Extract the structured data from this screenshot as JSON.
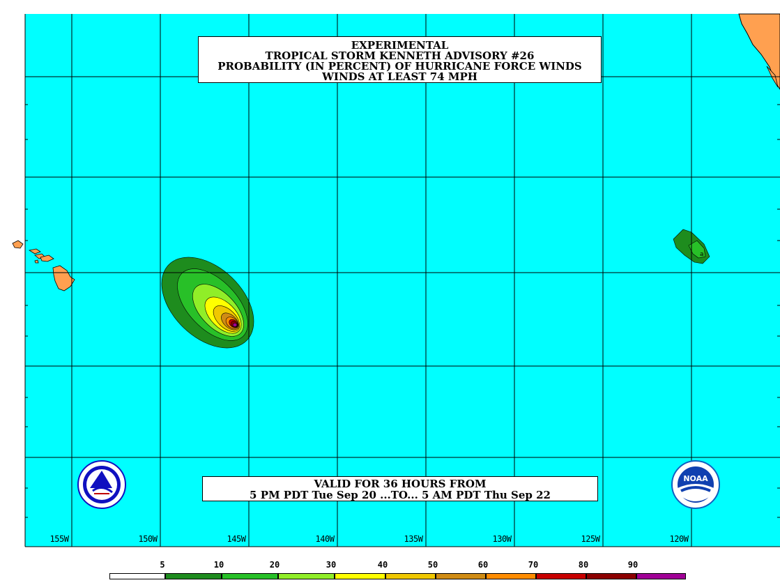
{
  "title": {
    "line1": "EXPERIMENTAL",
    "line2": "TROPICAL STORM KENNETH ADVISORY #26",
    "line3": "PROBABILITY (IN PERCENT) OF HURRICANE FORCE WINDS",
    "line4": "WINDS AT LEAST 74 MPH"
  },
  "valid": {
    "line1": "VALID FOR 36 HOURS FROM",
    "line2": "5 PM PDT Tue Sep 20 ...TO... 5 AM PDT Thu Sep 22"
  },
  "longitude_labels": [
    "155W",
    "150W",
    "145W",
    "140W",
    "135W",
    "130W",
    "125W",
    "120W"
  ],
  "legend": {
    "ticks": [
      "5",
      "10",
      "20",
      "30",
      "40",
      "50",
      "60",
      "70",
      "80",
      "90"
    ],
    "colors": [
      "#ffffff",
      "#1e8c1e",
      "#28c028",
      "#90ee28",
      "#ffff00",
      "#f0c800",
      "#d08c14",
      "#ff8c00",
      "#c80000",
      "#8c0000",
      "#a00096"
    ]
  },
  "map": {
    "ocean_color": "#00ffff",
    "land_color": "#ffa050",
    "grid_color": "#000000",
    "features": [
      "hawaii-islands",
      "baja-california-coast",
      "probability-contour-main",
      "probability-contour-east"
    ]
  },
  "logos": [
    "nws-logo",
    "noaa-logo"
  ]
}
